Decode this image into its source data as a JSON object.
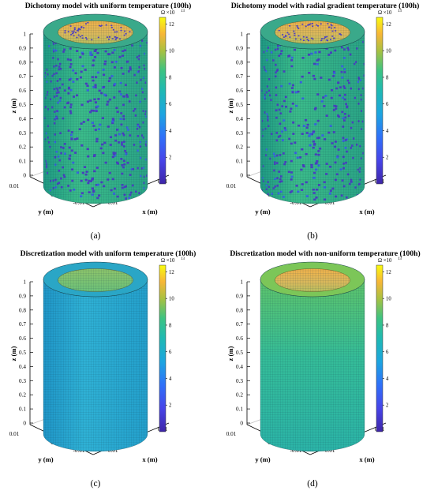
{
  "chart_data": [
    {
      "type": "surface",
      "panel": "(a)",
      "title": "Dichotomy model with uniform temperature (100h)",
      "pattern": "dichotomy-uniform",
      "xlabel": "x (m)",
      "ylabel": "y (m)",
      "zlabel": "z (m)",
      "x_ticks": [
        "-0.01",
        "0",
        "0.01"
      ],
      "y_ticks": [
        "0.01",
        "0",
        "-0.01"
      ],
      "z_ticks": [
        "0",
        "0.1",
        "0.2",
        "0.3",
        "0.4",
        "0.5",
        "0.6",
        "0.7",
        "0.8",
        "0.9",
        "1"
      ],
      "zlim": [
        0,
        1
      ],
      "colorbar": {
        "unit": "Ω ×10",
        "exponent": "13",
        "ticks": [
          "2",
          "4",
          "6",
          "8",
          "10",
          "12"
        ],
        "range": [
          0,
          12.5
        ]
      }
    },
    {
      "type": "surface",
      "panel": "(b)",
      "title": "Dichotomy model with radial gradient temperature (100h)",
      "pattern": "dichotomy-radial",
      "xlabel": "x (m)",
      "ylabel": "y (m)",
      "zlabel": "z (m)",
      "x_ticks": [
        "-0.01",
        "0",
        "0.01"
      ],
      "y_ticks": [
        "0.01",
        "0",
        "-0.01"
      ],
      "z_ticks": [
        "0",
        "0.1",
        "0.2",
        "0.3",
        "0.4",
        "0.5",
        "0.6",
        "0.7",
        "0.8",
        "0.9",
        "1"
      ],
      "zlim": [
        0,
        1
      ],
      "colorbar": {
        "unit": "Ω ×10",
        "exponent": "13",
        "ticks": [
          "2",
          "4",
          "6",
          "8",
          "10",
          "12"
        ],
        "range": [
          0,
          12.5
        ]
      }
    },
    {
      "type": "surface",
      "panel": "(c)",
      "title": "Discretization model with uniform temperature (100h)",
      "pattern": "discrete-uniform",
      "xlabel": "x (m)",
      "ylabel": "y (m)",
      "zlabel": "z (m)",
      "x_ticks": [
        "-0.01",
        "0",
        "0.01"
      ],
      "y_ticks": [
        "0.01",
        "0",
        "-0.01"
      ],
      "z_ticks": [
        "0",
        "0.1",
        "0.2",
        "0.3",
        "0.4",
        "0.5",
        "0.6",
        "0.7",
        "0.8",
        "0.9",
        "1"
      ],
      "zlim": [
        0,
        1
      ],
      "colorbar": {
        "unit": "Ω ×10",
        "exponent": "13",
        "ticks": [
          "2",
          "4",
          "6",
          "8",
          "10",
          "12"
        ],
        "range": [
          0,
          12.5
        ]
      }
    },
    {
      "type": "surface",
      "panel": "(d)",
      "title": "Discretization model with non-uniform temperature (100h)",
      "pattern": "discrete-nonuniform",
      "xlabel": "x (m)",
      "ylabel": "y (m)",
      "zlabel": "z (m)",
      "x_ticks": [
        "-0.01",
        "0",
        "0.01"
      ],
      "y_ticks": [
        "0.01",
        "0",
        "-0.01"
      ],
      "z_ticks": [
        "0",
        "0.1",
        "0.2",
        "0.3",
        "0.4",
        "0.5",
        "0.6",
        "0.7",
        "0.8",
        "0.9",
        "1"
      ],
      "zlim": [
        0,
        1
      ],
      "colorbar": {
        "unit": "Ω ×10",
        "exponent": "13",
        "ticks": [
          "2",
          "4",
          "6",
          "8",
          "10",
          "12"
        ],
        "range": [
          0,
          12.5
        ]
      }
    }
  ]
}
